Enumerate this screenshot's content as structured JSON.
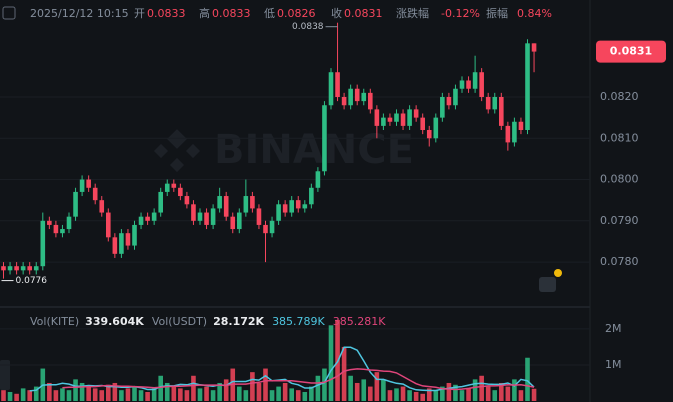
{
  "header": {
    "datetime": "2025/12/12 10:15",
    "open_label": "开",
    "open": "0.0833",
    "high_label": "高",
    "high": "0.0833",
    "low_label": "低",
    "low": "0.0826",
    "close_label": "收",
    "close": "0.0831",
    "change_label": "涨跌幅",
    "change": "-0.12%",
    "amplitude_label": "振幅",
    "amplitude": "0.84%"
  },
  "watermark": "BINANCE",
  "chart_data": [
    {
      "type": "candlestick",
      "up_color": "#2ebd85",
      "down_color": "#f6465d",
      "grid": true,
      "ylim": [
        0.07696,
        0.08435
      ],
      "yticks": [
        {
          "value": 0.082,
          "label": "0.0820"
        },
        {
          "value": 0.081,
          "label": "0.0810"
        },
        {
          "value": 0.08,
          "label": "0.0800"
        },
        {
          "value": 0.079,
          "label": "0.0790"
        },
        {
          "value": 0.078,
          "label": "0.0780"
        }
      ],
      "last_price": 0.0831,
      "high_marker": 0.0838,
      "low_marker": 0.0776,
      "open": [
        0.0779,
        0.0778,
        0.0779,
        0.0778,
        0.0779,
        0.0778,
        0.0779,
        0.079,
        0.0789,
        0.0787,
        0.0788,
        0.0791,
        0.0797,
        0.08,
        0.0798,
        0.0795,
        0.0792,
        0.0786,
        0.0782,
        0.0787,
        0.0784,
        0.0789,
        0.0791,
        0.079,
        0.0792,
        0.0797,
        0.0799,
        0.0798,
        0.0796,
        0.0794,
        0.079,
        0.0792,
        0.0789,
        0.0793,
        0.0796,
        0.0791,
        0.0788,
        0.0792,
        0.0796,
        0.0793,
        0.0789,
        0.0787,
        0.079,
        0.0794,
        0.0792,
        0.0795,
        0.0793,
        0.0794,
        0.0798,
        0.0802,
        0.0818,
        0.0826,
        0.082,
        0.0818,
        0.0822,
        0.0819,
        0.0821,
        0.0817,
        0.0813,
        0.0815,
        0.0814,
        0.0816,
        0.0813,
        0.0817,
        0.0815,
        0.0812,
        0.081,
        0.0815,
        0.082,
        0.0818,
        0.0822,
        0.0824,
        0.0822,
        0.0826,
        0.082,
        0.0817,
        0.082,
        0.0813,
        0.0809,
        0.0814,
        0.0812,
        0.0833
      ],
      "high": [
        0.078,
        0.078,
        0.078,
        0.078,
        0.078,
        0.078,
        0.0792,
        0.0791,
        0.079,
        0.0789,
        0.0792,
        0.0798,
        0.0801,
        0.0801,
        0.0799,
        0.0796,
        0.0793,
        0.0787,
        0.0788,
        0.0788,
        0.079,
        0.0792,
        0.0792,
        0.0793,
        0.0798,
        0.08,
        0.08,
        0.0799,
        0.0797,
        0.0795,
        0.0793,
        0.0793,
        0.0794,
        0.0798,
        0.0797,
        0.0792,
        0.0793,
        0.08,
        0.0797,
        0.0794,
        0.079,
        0.0791,
        0.0795,
        0.0795,
        0.0796,
        0.0796,
        0.0795,
        0.0799,
        0.0803,
        0.0819,
        0.0827,
        0.0838,
        0.0821,
        0.0823,
        0.0823,
        0.0822,
        0.0822,
        0.0818,
        0.0816,
        0.0816,
        0.0817,
        0.0817,
        0.0818,
        0.0818,
        0.0816,
        0.0813,
        0.0816,
        0.0821,
        0.0821,
        0.0823,
        0.0825,
        0.0825,
        0.083,
        0.0827,
        0.0821,
        0.0821,
        0.0821,
        0.0814,
        0.0815,
        0.0815,
        0.0834,
        0.0833
      ],
      "low": [
        0.0776,
        0.0777,
        0.0777,
        0.0777,
        0.0777,
        0.0777,
        0.0778,
        0.0788,
        0.0786,
        0.0786,
        0.0787,
        0.079,
        0.0796,
        0.0797,
        0.0794,
        0.0791,
        0.0785,
        0.0781,
        0.0781,
        0.0783,
        0.0783,
        0.0788,
        0.0789,
        0.0789,
        0.0791,
        0.0796,
        0.0797,
        0.0795,
        0.0793,
        0.0789,
        0.0789,
        0.0788,
        0.0788,
        0.0792,
        0.079,
        0.0787,
        0.0787,
        0.0791,
        0.0792,
        0.0788,
        0.078,
        0.0786,
        0.0789,
        0.0791,
        0.0791,
        0.0792,
        0.0792,
        0.0793,
        0.0797,
        0.0801,
        0.0817,
        0.0819,
        0.0817,
        0.0817,
        0.0818,
        0.0818,
        0.0816,
        0.081,
        0.0812,
        0.0813,
        0.0813,
        0.0812,
        0.0812,
        0.0814,
        0.0811,
        0.0808,
        0.0809,
        0.0814,
        0.0817,
        0.0817,
        0.0821,
        0.0821,
        0.0821,
        0.0819,
        0.0816,
        0.0816,
        0.0812,
        0.0807,
        0.0808,
        0.0811,
        0.0811,
        0.0826
      ],
      "close": [
        0.0778,
        0.0779,
        0.0778,
        0.0779,
        0.0778,
        0.0779,
        0.079,
        0.0789,
        0.0787,
        0.0788,
        0.0791,
        0.0797,
        0.08,
        0.0798,
        0.0795,
        0.0792,
        0.0786,
        0.0782,
        0.0787,
        0.0784,
        0.0789,
        0.0791,
        0.079,
        0.0792,
        0.0797,
        0.0799,
        0.0798,
        0.0796,
        0.0794,
        0.079,
        0.0792,
        0.0789,
        0.0793,
        0.0796,
        0.0791,
        0.0788,
        0.0792,
        0.0796,
        0.0793,
        0.0789,
        0.0787,
        0.079,
        0.0794,
        0.0792,
        0.0795,
        0.0793,
        0.0794,
        0.0798,
        0.0802,
        0.0818,
        0.0826,
        0.082,
        0.0818,
        0.0822,
        0.0819,
        0.0821,
        0.0817,
        0.0813,
        0.0815,
        0.0814,
        0.0816,
        0.0813,
        0.0817,
        0.0815,
        0.0812,
        0.081,
        0.0815,
        0.082,
        0.0818,
        0.0822,
        0.0824,
        0.0822,
        0.0826,
        0.082,
        0.0817,
        0.082,
        0.0813,
        0.0809,
        0.0814,
        0.0812,
        0.0833,
        0.0831
      ]
    },
    {
      "type": "volume",
      "ylim": [
        0,
        2580000
      ],
      "yticks": [
        {
          "value": 2000000,
          "label": "2M"
        },
        {
          "value": 1000000,
          "label": "1M"
        }
      ],
      "legend": [
        {
          "label": "Vol(KITE)",
          "value": "339.604K"
        },
        {
          "label": "Vol(USDT)",
          "value": "28.172K"
        }
      ],
      "values": [
        300000,
        250000,
        200000,
        350000,
        300000,
        400000,
        900000,
        500000,
        300000,
        350000,
        300000,
        600000,
        500000,
        400000,
        350000,
        300000,
        450000,
        500000,
        300000,
        350000,
        400000,
        300000,
        250000,
        350000,
        700000,
        500000,
        400000,
        350000,
        300000,
        700000,
        350000,
        400000,
        300000,
        500000,
        600000,
        900000,
        400000,
        300000,
        800000,
        500000,
        900000,
        300000,
        400000,
        500000,
        350000,
        300000,
        250000,
        400000,
        700000,
        900000,
        2100000,
        2250000,
        1500000,
        700000,
        500000,
        600000,
        400000,
        800000,
        600000,
        300000,
        350000,
        400000,
        300000,
        250000,
        200000,
        350000,
        300000,
        400000,
        500000,
        450000,
        300000,
        350000,
        600000,
        700000,
        400000,
        300000,
        500000,
        400000,
        600000,
        300000,
        1200000,
        339604
      ],
      "lines": [
        {
          "color": "#4fc6e0",
          "last_label": "385.789K",
          "values": [
            null,
            null,
            null,
            null,
            280000,
            300000,
            440000,
            450000,
            450000,
            490000,
            470000,
            410000,
            410000,
            430000,
            420000,
            430000,
            400000,
            400000,
            380000,
            380000,
            400000,
            370000,
            320000,
            320000,
            400000,
            420000,
            420000,
            460000,
            450000,
            490000,
            450000,
            430000,
            410000,
            450000,
            430000,
            540000,
            540000,
            540000,
            600000,
            580000,
            700000,
            560000,
            580000,
            600000,
            490000,
            450000,
            360000,
            360000,
            440000,
            510000,
            850000,
            1090000,
            1490000,
            1490000,
            1410000,
            1110000,
            800000,
            600000,
            600000,
            540000,
            490000,
            470000,
            370000,
            310000,
            300000,
            290000,
            290000,
            330000,
            350000,
            380000,
            400000,
            440000,
            480000,
            490000,
            470000,
            460000,
            460000,
            500000,
            420000,
            600000,
            560000,
            385789
          ]
        },
        {
          "color": "#e0457b",
          "last_label": "385.281K",
          "values": [
            null,
            null,
            null,
            null,
            null,
            null,
            null,
            null,
            null,
            370000,
            380000,
            380000,
            390000,
            400000,
            400000,
            420000,
            430000,
            420000,
            410000,
            410000,
            400000,
            390000,
            380000,
            370000,
            380000,
            400000,
            410000,
            410000,
            420000,
            430000,
            440000,
            440000,
            440000,
            440000,
            430000,
            470000,
            470000,
            470000,
            500000,
            520000,
            560000,
            560000,
            560000,
            560000,
            560000,
            540000,
            520000,
            500000,
            500000,
            520000,
            600000,
            690000,
            830000,
            870000,
            890000,
            880000,
            860000,
            850000,
            830000,
            820000,
            780000,
            680000,
            580000,
            480000,
            420000,
            400000,
            380000,
            340000,
            330000,
            320000,
            330000,
            350000,
            380000,
            400000,
            420000,
            420000,
            430000,
            450000,
            440000,
            450000,
            420000,
            385281
          ]
        }
      ]
    }
  ]
}
